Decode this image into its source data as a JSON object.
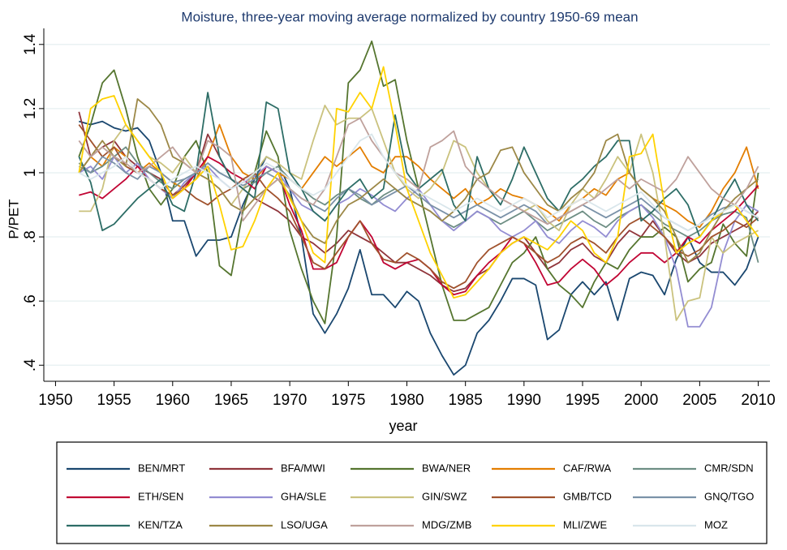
{
  "chart_data": {
    "type": "line",
    "title": "Moisture, three-year moving average  normalized by country 1950-69 mean",
    "x_label": "year",
    "y_label": "P/PET",
    "xlim": [
      1949,
      2011
    ],
    "xticks": [
      1950,
      1955,
      1960,
      1965,
      1970,
      1975,
      1980,
      1985,
      1990,
      1995,
      2000,
      2005,
      2010
    ],
    "ylim": [
      0.35,
      1.45
    ],
    "yticks": [
      {
        "value": 0.4,
        "label": ".4"
      },
      {
        "value": 0.6,
        "label": ".6"
      },
      {
        "value": 0.8,
        "label": ".8"
      },
      1,
      1.2,
      1.4
    ],
    "grid": true,
    "x": [
      1952,
      1953,
      1954,
      1955,
      1956,
      1957,
      1958,
      1959,
      1960,
      1961,
      1962,
      1963,
      1964,
      1965,
      1966,
      1967,
      1968,
      1969,
      1970,
      1971,
      1972,
      1973,
      1974,
      1975,
      1976,
      1977,
      1978,
      1979,
      1980,
      1981,
      1982,
      1983,
      1984,
      1985,
      1986,
      1987,
      1988,
      1989,
      1990,
      1991,
      1992,
      1993,
      1994,
      1995,
      1996,
      1997,
      1998,
      1999,
      2000,
      2001,
      2002,
      2003,
      2004,
      2005,
      2006,
      2007,
      2008,
      2009,
      2010
    ],
    "series": [
      {
        "name": "BEN/MRT",
        "color": "#1a476f",
        "values": [
          1.16,
          1.15,
          1.16,
          1.14,
          1.13,
          1.14,
          1.1,
          1.0,
          0.85,
          0.85,
          0.74,
          0.79,
          0.79,
          0.8,
          0.9,
          0.98,
          1.05,
          1.03,
          0.95,
          0.8,
          0.56,
          0.5,
          0.56,
          0.64,
          0.76,
          0.62,
          0.62,
          0.58,
          0.63,
          0.6,
          0.5,
          0.43,
          0.37,
          0.4,
          0.5,
          0.54,
          0.6,
          0.67,
          0.67,
          0.65,
          0.48,
          0.51,
          0.62,
          0.66,
          0.62,
          0.66,
          0.54,
          0.67,
          0.69,
          0.68,
          0.62,
          0.73,
          0.8,
          0.72,
          0.69,
          0.69,
          0.65,
          0.7,
          0.8
        ]
      },
      {
        "name": "BFA/MWI",
        "color": "#90353b",
        "values": [
          1.19,
          1.05,
          1.08,
          1.1,
          1.05,
          1.02,
          1.0,
          0.98,
          0.93,
          0.96,
          1.0,
          1.12,
          1.05,
          0.98,
          0.95,
          0.92,
          0.9,
          0.88,
          0.85,
          0.8,
          0.78,
          0.75,
          0.78,
          0.82,
          0.8,
          0.78,
          0.75,
          0.72,
          0.72,
          0.7,
          0.68,
          0.65,
          0.63,
          0.64,
          0.68,
          0.7,
          0.75,
          0.78,
          0.8,
          0.75,
          0.7,
          0.72,
          0.76,
          0.78,
          0.74,
          0.72,
          0.78,
          0.82,
          0.8,
          0.85,
          0.8,
          0.75,
          0.72,
          0.74,
          0.78,
          0.8,
          0.82,
          0.84,
          0.88
        ]
      },
      {
        "name": "BWA/NER",
        "color": "#55752f",
        "values": [
          1.05,
          1.15,
          1.28,
          1.32,
          1.2,
          1.05,
          0.95,
          0.9,
          0.95,
          1.05,
          1.1,
          1.0,
          0.71,
          0.68,
          0.88,
          1.0,
          1.13,
          1.05,
          0.82,
          0.7,
          0.6,
          0.53,
          0.8,
          1.28,
          1.32,
          1.41,
          1.27,
          1.29,
          1.1,
          0.95,
          0.8,
          0.65,
          0.54,
          0.54,
          0.56,
          0.58,
          0.65,
          0.72,
          0.75,
          0.8,
          0.7,
          0.65,
          0.62,
          0.58,
          0.66,
          0.72,
          0.7,
          0.76,
          0.8,
          0.8,
          0.83,
          0.8,
          0.66,
          0.7,
          0.72,
          0.84,
          0.78,
          0.74,
          1.0
        ]
      },
      {
        "name": "CAF/RWA",
        "color": "#e37e00",
        "values": [
          1.0,
          1.05,
          1.02,
          1.08,
          1.05,
          1.0,
          1.03,
          1.0,
          0.97,
          0.95,
          0.98,
          1.05,
          1.15,
          1.05,
          1.0,
          0.98,
          1.02,
          1.0,
          0.98,
          0.95,
          1.0,
          1.05,
          1.02,
          1.05,
          1.08,
          1.02,
          1.0,
          1.05,
          1.05,
          1.02,
          0.98,
          0.95,
          0.92,
          0.95,
          0.9,
          0.92,
          0.95,
          0.93,
          0.92,
          0.9,
          0.88,
          0.85,
          0.9,
          0.92,
          0.95,
          0.93,
          0.98,
          1.0,
          0.95,
          0.92,
          0.9,
          0.88,
          0.85,
          0.83,
          0.88,
          0.95,
          1.0,
          1.08,
          0.95
        ]
      },
      {
        "name": "CMR/SDN",
        "color": "#6e8e84",
        "values": [
          1.03,
          1.0,
          1.02,
          1.05,
          1.08,
          1.03,
          1.0,
          0.97,
          0.95,
          0.98,
          1.0,
          1.03,
          1.0,
          0.98,
          0.95,
          0.97,
          1.0,
          1.02,
          0.98,
          0.95,
          0.92,
          0.9,
          0.93,
          0.95,
          0.92,
          0.9,
          0.93,
          0.95,
          0.92,
          0.9,
          0.88,
          0.85,
          0.83,
          0.85,
          0.88,
          0.86,
          0.84,
          0.86,
          0.88,
          0.85,
          0.82,
          0.84,
          0.86,
          0.88,
          0.85,
          0.83,
          0.86,
          0.88,
          0.9,
          0.87,
          0.84,
          0.82,
          0.8,
          0.82,
          0.85,
          0.87,
          0.88,
          0.86,
          0.72
        ]
      },
      {
        "name": "ETH/SEN",
        "color": "#c10534",
        "values": [
          0.93,
          0.94,
          0.92,
          0.95,
          0.98,
          1.02,
          0.98,
          0.95,
          0.92,
          0.95,
          1.0,
          1.05,
          1.03,
          1.0,
          0.98,
          0.95,
          1.02,
          1.0,
          0.9,
          0.82,
          0.7,
          0.7,
          0.72,
          0.8,
          0.85,
          0.8,
          0.72,
          0.7,
          0.72,
          0.73,
          0.7,
          0.65,
          0.62,
          0.63,
          0.68,
          0.72,
          0.75,
          0.8,
          0.78,
          0.72,
          0.65,
          0.66,
          0.7,
          0.73,
          0.7,
          0.65,
          0.68,
          0.72,
          0.75,
          0.75,
          0.72,
          0.75,
          0.8,
          0.78,
          0.82,
          0.85,
          0.88,
          0.92,
          0.96
        ]
      },
      {
        "name": "GHA/SLE",
        "color": "#938dd2",
        "values": [
          1.0,
          1.02,
          0.98,
          1.05,
          1.0,
          1.03,
          0.98,
          0.95,
          0.92,
          0.97,
          1.0,
          1.02,
          0.98,
          0.95,
          0.97,
          0.99,
          1.02,
          1.0,
          0.95,
          0.9,
          0.88,
          0.85,
          0.9,
          0.92,
          0.95,
          0.93,
          0.9,
          0.88,
          0.92,
          0.95,
          0.9,
          0.85,
          0.82,
          0.85,
          0.88,
          0.86,
          0.82,
          0.8,
          0.82,
          0.85,
          0.8,
          0.78,
          0.82,
          0.85,
          0.83,
          0.8,
          0.85,
          0.88,
          0.9,
          0.86,
          0.8,
          0.7,
          0.52,
          0.52,
          0.58,
          0.75,
          0.85,
          0.9,
          0.88
        ]
      },
      {
        "name": "GIN/SWZ",
        "color": "#cac27e",
        "values": [
          0.88,
          0.88,
          0.95,
          1.1,
          1.15,
          1.1,
          1.05,
          1.03,
          1.0,
          1.05,
          1.0,
          0.98,
          0.95,
          0.9,
          0.95,
          1.0,
          1.05,
          1.03,
          1.0,
          0.98,
          1.1,
          1.21,
          1.15,
          1.17,
          1.17,
          1.2,
          1.1,
          1.0,
          0.95,
          0.92,
          0.95,
          1.0,
          1.1,
          1.08,
          1.0,
          0.95,
          0.92,
          0.9,
          0.88,
          0.9,
          0.85,
          0.82,
          0.9,
          0.95,
          0.92,
          0.98,
          1.05,
          1.0,
          1.12,
          1.0,
          0.8,
          0.54,
          0.6,
          0.61,
          0.8,
          0.75,
          0.78,
          0.8,
          0.82
        ]
      },
      {
        "name": "GMB/TCD",
        "color": "#a0522d",
        "values": [
          1.15,
          1.1,
          1.05,
          1.08,
          1.02,
          1.0,
          0.98,
          0.95,
          0.93,
          0.95,
          0.92,
          0.9,
          0.93,
          0.95,
          0.98,
          1.0,
          0.95,
          0.92,
          0.88,
          0.8,
          0.72,
          0.7,
          0.75,
          0.8,
          0.85,
          0.78,
          0.73,
          0.72,
          0.75,
          0.73,
          0.7,
          0.66,
          0.64,
          0.66,
          0.72,
          0.76,
          0.78,
          0.8,
          0.78,
          0.75,
          0.72,
          0.74,
          0.78,
          0.8,
          0.78,
          0.75,
          0.8,
          0.84,
          0.86,
          0.83,
          0.8,
          0.76,
          0.74,
          0.76,
          0.8,
          0.82,
          0.85,
          0.83,
          0.86
        ]
      },
      {
        "name": "GNQ/TGO",
        "color": "#7b92a8",
        "values": [
          1.02,
          1.0,
          1.05,
          1.03,
          1.0,
          0.98,
          1.02,
          1.0,
          0.97,
          0.98,
          1.0,
          1.03,
          1.0,
          0.98,
          0.96,
          0.98,
          1.0,
          0.98,
          0.95,
          0.92,
          0.9,
          0.88,
          0.92,
          0.95,
          0.93,
          0.9,
          0.92,
          0.94,
          0.96,
          0.93,
          0.9,
          0.88,
          0.86,
          0.88,
          0.9,
          0.88,
          0.86,
          0.88,
          0.9,
          0.88,
          0.84,
          0.86,
          0.88,
          0.9,
          0.88,
          0.86,
          0.88,
          0.9,
          0.92,
          0.89,
          0.86,
          0.84,
          0.82,
          0.84,
          0.87,
          0.89,
          0.9,
          0.88,
          0.86
        ]
      },
      {
        "name": "KEN/TZA",
        "color": "#2d6d66",
        "values": [
          1.05,
          0.97,
          0.82,
          0.84,
          0.88,
          0.92,
          0.95,
          0.98,
          0.9,
          0.88,
          1.0,
          1.25,
          1.05,
          0.98,
          0.95,
          0.92,
          1.22,
          1.2,
          1.0,
          0.95,
          0.88,
          0.85,
          0.9,
          0.95,
          0.98,
          0.92,
          0.95,
          1.18,
          1.0,
          0.95,
          0.98,
          1.01,
          0.9,
          0.85,
          1.05,
          0.95,
          0.9,
          0.98,
          1.08,
          1.0,
          0.92,
          0.88,
          0.95,
          0.98,
          1.02,
          1.05,
          1.1,
          1.1,
          0.85,
          0.88,
          0.92,
          0.95,
          0.9,
          0.8,
          0.85,
          0.92,
          0.98,
          0.9,
          0.85
        ]
      },
      {
        "name": "LSO/UGA",
        "color": "#9c8847",
        "values": [
          1.0,
          1.05,
          1.1,
          1.05,
          1.02,
          1.23,
          1.2,
          1.15,
          1.05,
          1.03,
          1.0,
          0.98,
          0.95,
          0.9,
          0.88,
          0.92,
          0.95,
          0.98,
          0.93,
          0.85,
          0.8,
          0.78,
          0.85,
          0.9,
          0.92,
          0.95,
          0.98,
          0.95,
          0.92,
          0.9,
          0.88,
          0.85,
          0.88,
          0.92,
          0.98,
          1.0,
          1.07,
          1.08,
          1.0,
          0.95,
          0.9,
          0.88,
          0.92,
          0.95,
          1.0,
          1.1,
          1.12,
          1.0,
          0.95,
          0.92,
          0.88,
          0.8,
          0.72,
          0.75,
          0.82,
          0.88,
          0.92,
          0.95,
          0.98
        ]
      },
      {
        "name": "MDG/ZMB",
        "color": "#bfa19c",
        "values": [
          1.1,
          1.05,
          1.08,
          1.05,
          1.03,
          1.0,
          1.02,
          1.05,
          1.08,
          1.03,
          1.0,
          1.1,
          1.08,
          1.05,
          0.85,
          0.9,
          0.95,
          0.98,
          0.95,
          0.92,
          0.9,
          0.95,
          1.05,
          1.15,
          1.17,
          1.1,
          1.05,
          1.0,
          0.98,
          0.95,
          1.08,
          1.1,
          1.13,
          1.02,
          0.98,
          0.95,
          0.92,
          0.9,
          0.88,
          0.86,
          0.84,
          0.86,
          0.88,
          0.9,
          0.92,
          0.95,
          0.98,
          0.95,
          0.98,
          0.96,
          0.94,
          0.98,
          1.05,
          1.0,
          0.95,
          0.92,
          0.9,
          0.95,
          1.02
        ]
      },
      {
        "name": "MLI/ZWE",
        "color": "#ffd200",
        "values": [
          1.0,
          1.2,
          1.23,
          1.24,
          1.15,
          1.1,
          1.05,
          1.0,
          0.92,
          0.95,
          0.98,
          1.02,
          0.9,
          0.76,
          0.77,
          0.85,
          0.95,
          1.0,
          0.92,
          0.85,
          0.75,
          0.72,
          1.2,
          1.19,
          1.25,
          1.2,
          1.33,
          1.15,
          0.95,
          0.85,
          0.75,
          0.68,
          0.61,
          0.62,
          0.66,
          0.7,
          0.75,
          0.78,
          0.8,
          0.78,
          0.76,
          0.8,
          0.85,
          0.82,
          0.75,
          0.72,
          0.8,
          1.05,
          1.06,
          1.12,
          0.9,
          0.75,
          0.78,
          0.8,
          0.85,
          0.88,
          0.9,
          0.85,
          0.8
        ]
      },
      {
        "name": "MOZ",
        "color": "#d9e6eb",
        "values": [
          1.0,
          0.98,
          1.0,
          1.02,
          1.05,
          1.0,
          0.98,
          0.95,
          0.98,
          1.0,
          1.02,
          1.0,
          0.98,
          0.95,
          0.97,
          1.0,
          1.03,
          1.01,
          0.98,
          0.95,
          0.93,
          0.95,
          1.0,
          1.05,
          1.1,
          1.12,
          1.05,
          1.0,
          0.96,
          0.94,
          0.92,
          0.9,
          0.88,
          0.9,
          0.92,
          0.9,
          0.88,
          0.9,
          0.92,
          0.9,
          0.86,
          0.88,
          0.9,
          0.92,
          0.9,
          0.88,
          0.9,
          0.92,
          0.94,
          0.9,
          0.86,
          0.84,
          0.82,
          0.84,
          0.86,
          0.88,
          0.9,
          0.88,
          0.86
        ]
      }
    ]
  }
}
